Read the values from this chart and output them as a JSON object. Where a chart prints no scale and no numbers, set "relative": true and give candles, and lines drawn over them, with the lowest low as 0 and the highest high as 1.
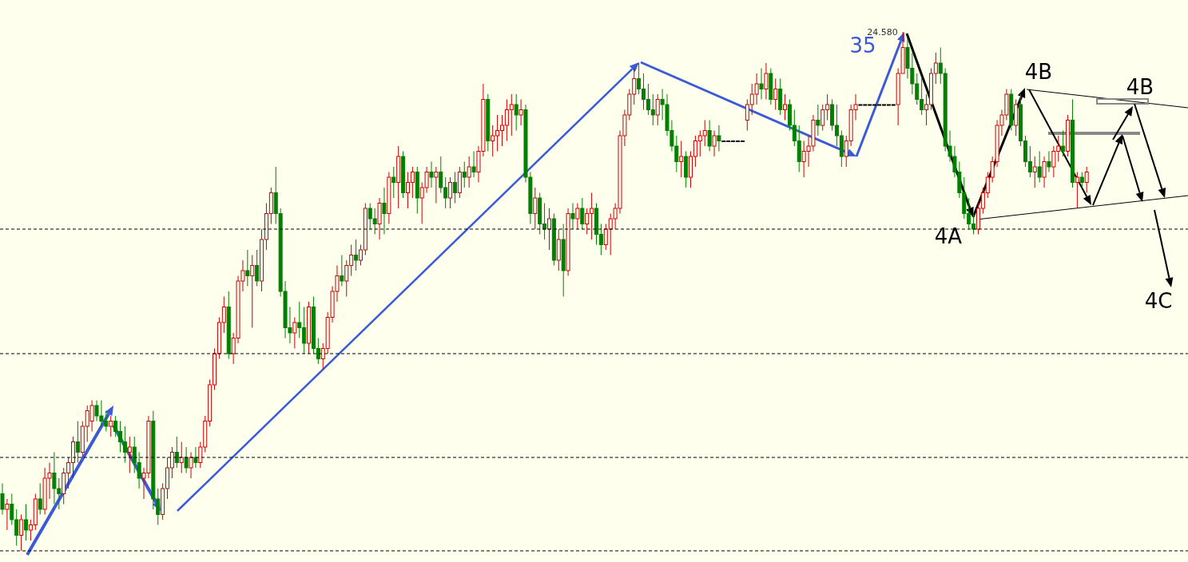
{
  "chart_data": {
    "type": "candlestick",
    "relative": true,
    "annotations": [
      "24.580",
      "35",
      "4A",
      "4B",
      "4B",
      "4C"
    ],
    "ref_lines": [
      {
        "axis": "y",
        "value": 0.62,
        "line_style": "dashed"
      },
      {
        "axis": "y",
        "value": 0.38,
        "line_style": "dashed"
      },
      {
        "axis": "y",
        "value": 0.18,
        "line_style": "dashed"
      },
      {
        "axis": "y",
        "value": 0,
        "line_style": "dashed"
      }
    ],
    "ohlc": [
      [
        0.11,
        0.13,
        0.07,
        0.08
      ],
      [
        0.08,
        0.1,
        0.04,
        0.09
      ],
      [
        0.09,
        0.11,
        0.05,
        0.06
      ],
      [
        0.06,
        0.08,
        0.01,
        0.03
      ],
      [
        0.03,
        0.07,
        0,
        0.06
      ],
      [
        0.06,
        0.09,
        0.02,
        0.04
      ],
      [
        0.04,
        0.06,
        0.02,
        0.05
      ],
      [
        0.05,
        0.11,
        0.04,
        0.1
      ],
      [
        0.1,
        0.13,
        0.07,
        0.08
      ],
      [
        0.08,
        0.16,
        0.07,
        0.14
      ],
      [
        0.14,
        0.17,
        0.1,
        0.15
      ],
      [
        0.15,
        0.19,
        0.09,
        0.12
      ],
      [
        0.12,
        0.14,
        0.08,
        0.11
      ],
      [
        0.11,
        0.16,
        0.09,
        0.15
      ],
      [
        0.15,
        0.18,
        0.12,
        0.17
      ],
      [
        0.17,
        0.22,
        0.14,
        0.21
      ],
      [
        0.21,
        0.25,
        0.17,
        0.19
      ],
      [
        0.19,
        0.25,
        0.18,
        0.24
      ],
      [
        0.24,
        0.28,
        0.21,
        0.27
      ],
      [
        0.25,
        0.29,
        0.23,
        0.28
      ],
      [
        0.28,
        0.29,
        0.25,
        0.26
      ],
      [
        0.26,
        0.29,
        0.24,
        0.25
      ],
      [
        0.25,
        0.27,
        0.23,
        0.24
      ],
      [
        0.24,
        0.26,
        0.22,
        0.25
      ],
      [
        0.25,
        0.26,
        0.22,
        0.23
      ],
      [
        0.23,
        0.25,
        0.19,
        0.21
      ],
      [
        0.21,
        0.24,
        0.17,
        0.19
      ],
      [
        0.19,
        0.22,
        0.15,
        0.2
      ],
      [
        0.2,
        0.22,
        0.15,
        0.17
      ],
      [
        0.17,
        0.19,
        0.12,
        0.14
      ],
      [
        0.14,
        0.16,
        0.1,
        0.15
      ],
      [
        0.15,
        0.26,
        0.14,
        0.25
      ],
      [
        0.25,
        0.27,
        0.08,
        0.1
      ],
      [
        0.1,
        0.12,
        0.05,
        0.07
      ],
      [
        0.07,
        0.13,
        0.06,
        0.12
      ],
      [
        0.12,
        0.18,
        0.1,
        0.16
      ],
      [
        0.16,
        0.2,
        0.14,
        0.19
      ],
      [
        0.19,
        0.22,
        0.16,
        0.17
      ],
      [
        0.17,
        0.21,
        0.15,
        0.18
      ],
      [
        0.18,
        0.2,
        0.15,
        0.16
      ],
      [
        0.16,
        0.19,
        0.14,
        0.18
      ],
      [
        0.18,
        0.2,
        0.16,
        0.17
      ],
      [
        0.17,
        0.21,
        0.16,
        0.2
      ],
      [
        0.2,
        0.26,
        0.19,
        0.25
      ],
      [
        0.25,
        0.33,
        0.24,
        0.32
      ],
      [
        0.32,
        0.39,
        0.31,
        0.38
      ],
      [
        0.38,
        0.45,
        0.37,
        0.44
      ],
      [
        0.44,
        0.49,
        0.42,
        0.47
      ],
      [
        0.47,
        0.5,
        0.37,
        0.38
      ],
      [
        0.38,
        0.42,
        0.36,
        0.41
      ],
      [
        0.41,
        0.53,
        0.4,
        0.52
      ],
      [
        0.52,
        0.56,
        0.5,
        0.54
      ],
      [
        0.54,
        0.58,
        0.51,
        0.53
      ],
      [
        0.53,
        0.57,
        0.43,
        0.55
      ],
      [
        0.55,
        0.58,
        0.51,
        0.52
      ],
      [
        0.52,
        0.62,
        0.5,
        0.6
      ],
      [
        0.6,
        0.67,
        0.58,
        0.65
      ],
      [
        0.65,
        0.7,
        0.63,
        0.69
      ],
      [
        0.69,
        0.74,
        0.63,
        0.65
      ],
      [
        0.65,
        0.66,
        0.49,
        0.5
      ],
      [
        0.5,
        0.52,
        0.41,
        0.43
      ],
      [
        0.43,
        0.47,
        0.4,
        0.42
      ],
      [
        0.42,
        0.45,
        0.39,
        0.44
      ],
      [
        0.44,
        0.48,
        0.41,
        0.43
      ],
      [
        0.43,
        0.47,
        0.38,
        0.4
      ],
      [
        0.4,
        0.48,
        0.38,
        0.47
      ],
      [
        0.47,
        0.49,
        0.38,
        0.39
      ],
      [
        0.39,
        0.41,
        0.36,
        0.37
      ],
      [
        0.37,
        0.4,
        0.35,
        0.39
      ],
      [
        0.39,
        0.46,
        0.38,
        0.45
      ],
      [
        0.45,
        0.51,
        0.44,
        0.5
      ],
      [
        0.5,
        0.55,
        0.48,
        0.53
      ],
      [
        0.53,
        0.57,
        0.51,
        0.52
      ],
      [
        0.52,
        0.56,
        0.49,
        0.55
      ],
      [
        0.55,
        0.59,
        0.53,
        0.57
      ],
      [
        0.57,
        0.6,
        0.54,
        0.56
      ],
      [
        0.56,
        0.59,
        0.55,
        0.58
      ],
      [
        0.58,
        0.67,
        0.57,
        0.66
      ],
      [
        0.66,
        0.67,
        0.62,
        0.64
      ],
      [
        0.64,
        0.66,
        0.61,
        0.63
      ],
      [
        0.63,
        0.68,
        0.6,
        0.67
      ],
      [
        0.67,
        0.7,
        0.61,
        0.65
      ],
      [
        0.65,
        0.73,
        0.63,
        0.72
      ],
      [
        0.72,
        0.74,
        0.68,
        0.71
      ],
      [
        0.71,
        0.78,
        0.66,
        0.76
      ],
      [
        0.76,
        0.77,
        0.68,
        0.69
      ],
      [
        0.69,
        0.73,
        0.66,
        0.71
      ],
      [
        0.71,
        0.74,
        0.68,
        0.73
      ],
      [
        0.73,
        0.74,
        0.65,
        0.68
      ],
      [
        0.68,
        0.71,
        0.63,
        0.7
      ],
      [
        0.7,
        0.74,
        0.69,
        0.73
      ],
      [
        0.73,
        0.75,
        0.7,
        0.72
      ],
      [
        0.72,
        0.74,
        0.67,
        0.73
      ],
      [
        0.73,
        0.76,
        0.69,
        0.7
      ],
      [
        0.7,
        0.72,
        0.66,
        0.68
      ],
      [
        0.68,
        0.72,
        0.66,
        0.71
      ],
      [
        0.71,
        0.73,
        0.67,
        0.69
      ],
      [
        0.69,
        0.74,
        0.68,
        0.73
      ],
      [
        0.73,
        0.75,
        0.7,
        0.72
      ],
      [
        0.72,
        0.76,
        0.7,
        0.74
      ],
      [
        0.74,
        0.77,
        0.72,
        0.73
      ],
      [
        0.73,
        0.78,
        0.71,
        0.77
      ],
      [
        0.77,
        0.9,
        0.76,
        0.87
      ],
      [
        0.87,
        0.88,
        0.77,
        0.79
      ],
      [
        0.79,
        0.82,
        0.76,
        0.8
      ],
      [
        0.8,
        0.84,
        0.77,
        0.81
      ],
      [
        0.81,
        0.84,
        0.78,
        0.82
      ],
      [
        0.82,
        0.87,
        0.79,
        0.85
      ],
      [
        0.85,
        0.88,
        0.8,
        0.86
      ],
      [
        0.86,
        0.88,
        0.81,
        0.84
      ],
      [
        0.84,
        0.87,
        0.82,
        0.85
      ],
      [
        0.85,
        0.86,
        0.71,
        0.72
      ],
      [
        0.72,
        0.73,
        0.63,
        0.65
      ],
      [
        0.65,
        0.7,
        0.62,
        0.68
      ],
      [
        0.68,
        0.69,
        0.61,
        0.63
      ],
      [
        0.63,
        0.67,
        0.6,
        0.62
      ],
      [
        0.62,
        0.66,
        0.58,
        0.64
      ],
      [
        0.64,
        0.65,
        0.55,
        0.56
      ],
      [
        0.56,
        0.62,
        0.54,
        0.6
      ],
      [
        0.6,
        0.63,
        0.49,
        0.54
      ],
      [
        0.54,
        0.66,
        0.53,
        0.65
      ],
      [
        0.65,
        0.67,
        0.62,
        0.64
      ],
      [
        0.64,
        0.67,
        0.62,
        0.66
      ],
      [
        0.66,
        0.68,
        0.62,
        0.63
      ],
      [
        0.63,
        0.66,
        0.61,
        0.65
      ],
      [
        0.65,
        0.69,
        0.6,
        0.66
      ],
      [
        0.66,
        0.67,
        0.59,
        0.61
      ],
      [
        0.61,
        0.63,
        0.57,
        0.59
      ],
      [
        0.59,
        0.63,
        0.58,
        0.62
      ],
      [
        0.62,
        0.65,
        0.57,
        0.64
      ],
      [
        0.64,
        0.67,
        0.62,
        0.66
      ],
      [
        0.66,
        0.81,
        0.65,
        0.8
      ],
      [
        0.8,
        0.85,
        0.78,
        0.84
      ],
      [
        0.84,
        0.89,
        0.83,
        0.88
      ],
      [
        0.88,
        0.93,
        0.86,
        0.91
      ],
      [
        0.91,
        0.94,
        0.88,
        0.89
      ],
      [
        0.89,
        0.92,
        0.85,
        0.87
      ],
      [
        0.87,
        0.9,
        0.84,
        0.85
      ],
      [
        0.85,
        0.88,
        0.82,
        0.84
      ],
      [
        0.84,
        0.88,
        0.82,
        0.87
      ],
      [
        0.87,
        0.89,
        0.83,
        0.86
      ],
      [
        0.86,
        0.88,
        0.8,
        0.81
      ],
      [
        0.81,
        0.83,
        0.77,
        0.78
      ],
      [
        0.78,
        0.8,
        0.73,
        0.75
      ],
      [
        0.75,
        0.79,
        0.72,
        0.76
      ],
      [
        0.76,
        0.77,
        0.7,
        0.72
      ],
      [
        0.72,
        0.77,
        0.7,
        0.76
      ],
      [
        0.76,
        0.8,
        0.74,
        0.79
      ],
      [
        0.79,
        0.81,
        0.76,
        0.8
      ],
      [
        0.8,
        0.83,
        0.78,
        0.81
      ],
      [
        0.81,
        0.83,
        0.77,
        0.78
      ],
      [
        0.78,
        0.81,
        0.76,
        0.8
      ],
      [
        0.8,
        0.82,
        0.77,
        0.79
      ],
      [
        0.79,
        0.79,
        0.79,
        0.79
      ],
      [
        0.79,
        0.79,
        0.79,
        0.79
      ],
      [
        0.79,
        0.79,
        0.79,
        0.79
      ],
      [
        0.79,
        0.79,
        0.79,
        0.79
      ],
      [
        0.79,
        0.79,
        0.79,
        0.79
      ],
      [
        0.83,
        0.87,
        0.81,
        0.86
      ],
      [
        0.86,
        0.9,
        0.84,
        0.88
      ],
      [
        0.88,
        0.92,
        0.86,
        0.9
      ],
      [
        0.9,
        0.93,
        0.87,
        0.89
      ],
      [
        0.89,
        0.94,
        0.87,
        0.92
      ],
      [
        0.92,
        0.93,
        0.86,
        0.87
      ],
      [
        0.87,
        0.91,
        0.85,
        0.89
      ],
      [
        0.89,
        0.91,
        0.84,
        0.85
      ],
      [
        0.85,
        0.88,
        0.83,
        0.86
      ],
      [
        0.86,
        0.87,
        0.81,
        0.82
      ],
      [
        0.82,
        0.85,
        0.78,
        0.79
      ],
      [
        0.79,
        0.82,
        0.73,
        0.75
      ],
      [
        0.75,
        0.79,
        0.72,
        0.77
      ],
      [
        0.77,
        0.8,
        0.74,
        0.78
      ],
      [
        0.78,
        0.84,
        0.77,
        0.83
      ],
      [
        0.83,
        0.86,
        0.8,
        0.82
      ],
      [
        0.82,
        0.86,
        0.81,
        0.85
      ],
      [
        0.85,
        0.88,
        0.83,
        0.86
      ],
      [
        0.86,
        0.87,
        0.81,
        0.82
      ],
      [
        0.82,
        0.86,
        0.78,
        0.8
      ],
      [
        0.8,
        0.81,
        0.74,
        0.76
      ],
      [
        0.76,
        0.8,
        0.74,
        0.79
      ],
      [
        0.79,
        0.86,
        0.78,
        0.85
      ],
      [
        0.85,
        0.88,
        0.83,
        0.86
      ],
      [
        0.86,
        0.86,
        0.86,
        0.86
      ],
      [
        0.86,
        0.86,
        0.86,
        0.86
      ],
      [
        0.86,
        0.86,
        0.86,
        0.86
      ],
      [
        0.86,
        0.86,
        0.86,
        0.86
      ],
      [
        0.86,
        0.86,
        0.86,
        0.86
      ],
      [
        0.86,
        0.86,
        0.86,
        0.86
      ],
      [
        0.86,
        0.86,
        0.86,
        0.86
      ],
      [
        0.86,
        0.86,
        0.86,
        0.86
      ],
      [
        0.86,
        0.93,
        0.82,
        0.92
      ],
      [
        0.92,
        1,
        0.92,
        0.97
      ],
      [
        0.97,
        0.99,
        0.91,
        0.93
      ],
      [
        0.93,
        0.96,
        0.88,
        0.9
      ],
      [
        0.9,
        0.92,
        0.86,
        0.87
      ],
      [
        0.87,
        0.91,
        0.84,
        0.85
      ],
      [
        0.85,
        0.88,
        0.82,
        0.86
      ],
      [
        0.86,
        0.93,
        0.85,
        0.92
      ],
      [
        0.92,
        0.96,
        0.9,
        0.94
      ],
      [
        0.94,
        0.97,
        0.9,
        0.92
      ],
      [
        0.92,
        0.93,
        0.77,
        0.78
      ],
      [
        0.78,
        0.81,
        0.75,
        0.76
      ],
      [
        0.76,
        0.78,
        0.72,
        0.73
      ],
      [
        0.73,
        0.75,
        0.68,
        0.69
      ],
      [
        0.69,
        0.72,
        0.64,
        0.65
      ],
      [
        0.65,
        0.68,
        0.62,
        0.63
      ],
      [
        0.63,
        0.65,
        0.61,
        0.62
      ],
      [
        0.62,
        0.67,
        0.61,
        0.66
      ],
      [
        0.66,
        0.7,
        0.65,
        0.69
      ],
      [
        0.69,
        0.73,
        0.68,
        0.72
      ],
      [
        0.72,
        0.76,
        0.71,
        0.75
      ],
      [
        0.75,
        0.83,
        0.74,
        0.82
      ],
      [
        0.82,
        0.85,
        0.8,
        0.84
      ],
      [
        0.84,
        0.89,
        0.83,
        0.88
      ],
      [
        0.88,
        0.89,
        0.81,
        0.82
      ],
      [
        0.82,
        0.87,
        0.8,
        0.86
      ],
      [
        0.86,
        0.88,
        0.78,
        0.79
      ],
      [
        0.79,
        0.8,
        0.74,
        0.75
      ],
      [
        0.75,
        0.78,
        0.72,
        0.73
      ],
      [
        0.73,
        0.76,
        0.7,
        0.74
      ],
      [
        0.74,
        0.77,
        0.71,
        0.72
      ],
      [
        0.72,
        0.76,
        0.7,
        0.75
      ],
      [
        0.75,
        0.77,
        0.73,
        0.74
      ],
      [
        0.74,
        0.78,
        0.72,
        0.77
      ],
      [
        0.77,
        0.8,
        0.75,
        0.78
      ],
      [
        0.78,
        0.81,
        0.76,
        0.77
      ],
      [
        0.77,
        0.84,
        0.76,
        0.83
      ],
      [
        0.83,
        0.87,
        0.7,
        0.71
      ],
      [
        0.71,
        0.73,
        0.66,
        0.72
      ],
      [
        0.72,
        0.73,
        0.7,
        0.71
      ],
      [
        0.71,
        0.74,
        0.69,
        0.73
      ]
    ]
  }
}
